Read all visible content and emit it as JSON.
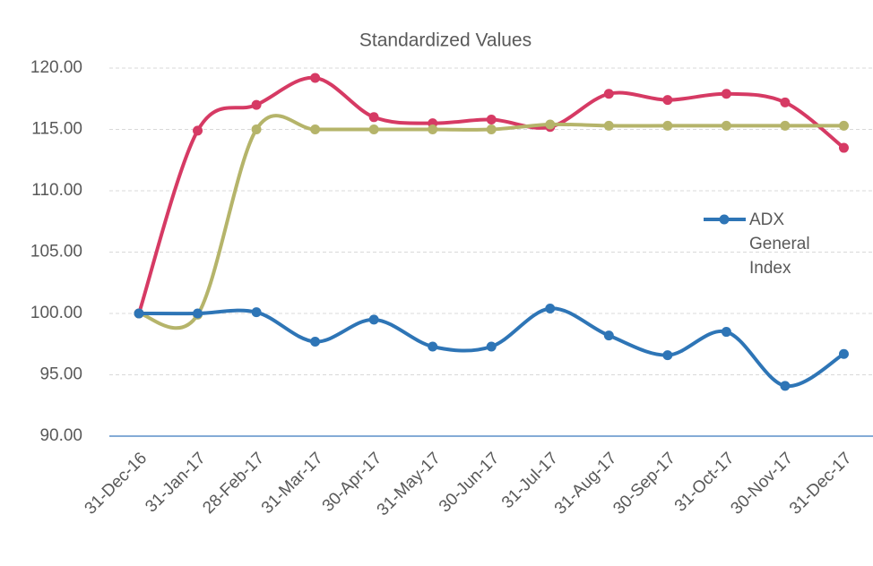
{
  "chart_data": {
    "type": "line",
    "title": "Standardized Values",
    "categories": [
      "31-Dec-16",
      "31-Jan-17",
      "28-Feb-17",
      "31-Mar-17",
      "30-Apr-17",
      "31-May-17",
      "30-Jun-17",
      "31-Jul-17",
      "31-Aug-17",
      "30-Sep-17",
      "31-Oct-17",
      "30-Nov-17",
      "31-Dec-17"
    ],
    "series": [
      {
        "name": "ADX General Index",
        "color": "#2e75b6",
        "values": [
          100,
          100,
          100.1,
          97.7,
          99.5,
          97.3,
          97.3,
          100.4,
          98.2,
          96.6,
          98.5,
          94.1,
          96.7
        ]
      },
      {
        "color": "#d63a64",
        "values": [
          100,
          114.9,
          117,
          119.2,
          116,
          115.5,
          115.8,
          115.2,
          117.9,
          117.4,
          117.9,
          117.2,
          113.5
        ]
      },
      {
        "color": "#b5b46a",
        "values": [
          100,
          99.9,
          115,
          115,
          115,
          115,
          115,
          115.4,
          115.3,
          115.3,
          115.3,
          115.3,
          115.3
        ]
      }
    ],
    "ylim": [
      90,
      120
    ],
    "yticks": [
      {
        "value": 90,
        "label": "90.00"
      },
      {
        "value": 95,
        "label": "95.00"
      },
      {
        "value": 100,
        "label": "100.00"
      },
      {
        "value": 105,
        "label": "105.00"
      },
      {
        "value": 110,
        "label": "110.00"
      },
      {
        "value": 115,
        "label": "115.00"
      },
      {
        "value": 120,
        "label": "120.00"
      }
    ],
    "grid": true,
    "smooth": true,
    "legend": "right"
  }
}
